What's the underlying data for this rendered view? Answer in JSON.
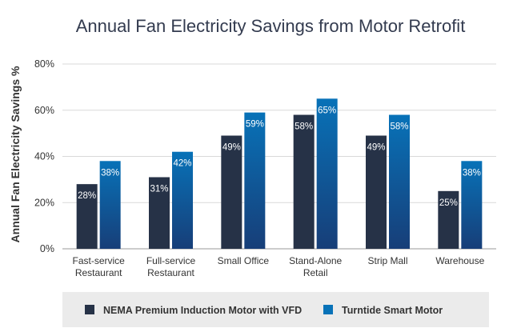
{
  "chart_data": {
    "type": "bar",
    "title": "Annual Fan Electricity Savings from Motor Retrofit",
    "xlabel": "",
    "ylabel": "Annual Fan Electricity Savings %",
    "ylim": [
      0,
      80
    ],
    "yticks": [
      0,
      20,
      40,
      60,
      80
    ],
    "ytick_labels": [
      "0%",
      "20%",
      "40%",
      "60%",
      "80%"
    ],
    "grid": true,
    "legend_position": "bottom",
    "categories": [
      [
        "Fast-service",
        "Restaurant"
      ],
      [
        "Full-service",
        "Restaurant"
      ],
      [
        "Small Office"
      ],
      [
        "Stand-Alone",
        "Retail"
      ],
      [
        "Strip Mall"
      ],
      [
        "Warehouse"
      ]
    ],
    "series": [
      {
        "name": "NEMA Premium Induction Motor with VFD",
        "color": "#263247",
        "values": [
          28,
          31,
          49,
          58,
          49,
          25
        ],
        "labels": [
          "28%",
          "31%",
          "49%",
          "58%",
          "49%",
          "25%"
        ]
      },
      {
        "name": "Turntide Smart Motor",
        "color": "#0872b8",
        "color_bottom": "#173e78",
        "values": [
          38,
          42,
          59,
          65,
          58,
          38
        ],
        "labels": [
          "38%",
          "42%",
          "59%",
          "65%",
          "58%",
          "38%"
        ]
      }
    ],
    "colors": {
      "title": "#333b4f",
      "axis_text": "#333333",
      "grid": "#d9d9d9",
      "label_text": "#ffffff",
      "legend_bg": "#ebebeb"
    }
  }
}
